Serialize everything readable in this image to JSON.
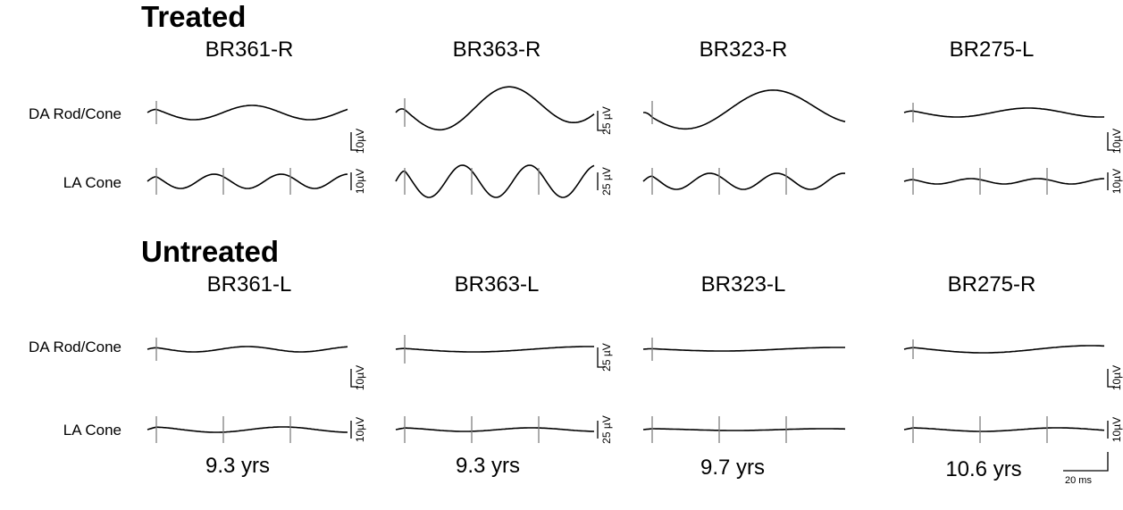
{
  "sections": [
    {
      "title": "Treated",
      "eyes": [
        "BR361-R",
        "BR363-R",
        "BR323-R",
        "BR275-L"
      ],
      "scales": [
        [
          "10µV",
          "25 µV",
          "",
          "10µV"
        ],
        [
          "10µV",
          "25 µV",
          "",
          "10µV"
        ]
      ]
    },
    {
      "title": "Untreated",
      "eyes": [
        "BR361-L",
        "BR363-L",
        "BR323-L",
        "BR275-R"
      ],
      "scales": [
        [
          "10µV",
          "25 µV",
          "",
          "10µV"
        ],
        [
          "10µV",
          "25 µV",
          "",
          "10µV"
        ]
      ]
    }
  ],
  "row_labels": [
    "DA Rod/Cone",
    "LA Cone"
  ],
  "time_scale": "20 ms",
  "ages": [
    "9.3 yrs",
    "9.3 yrs",
    "9.7 yrs",
    "10.6 yrs"
  ],
  "colors": {
    "trace": "#000000",
    "marker": "#808080"
  }
}
